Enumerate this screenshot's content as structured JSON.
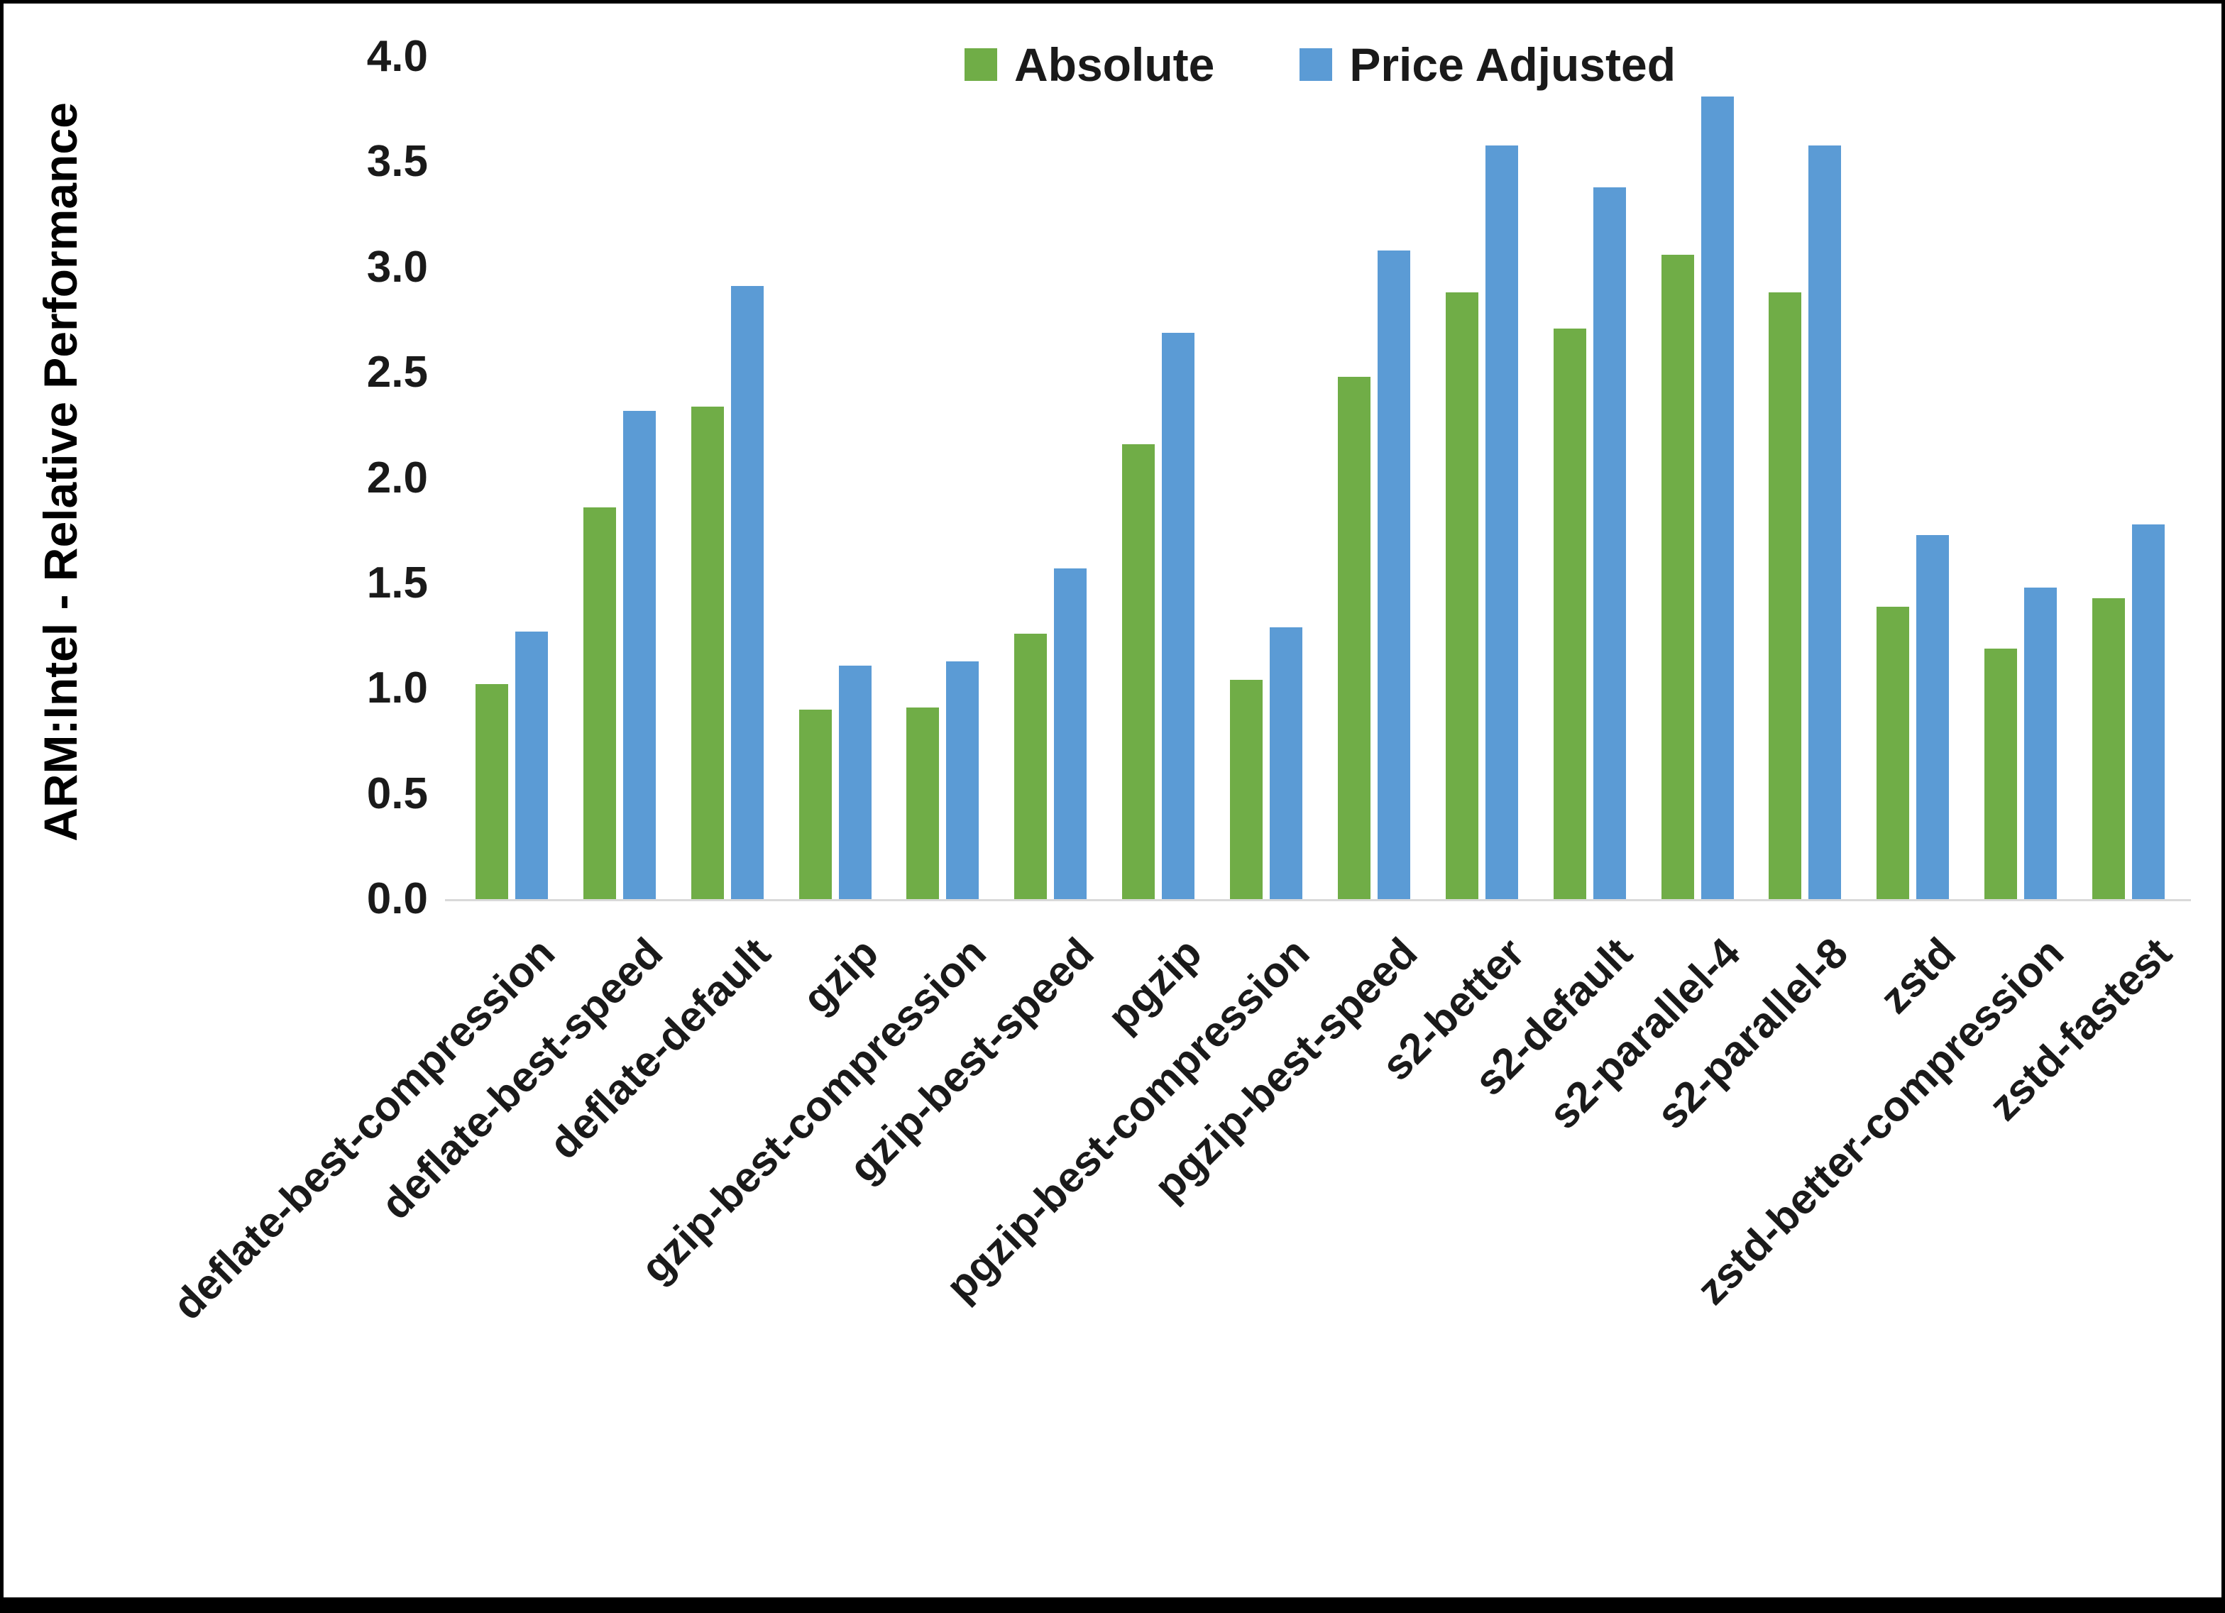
{
  "chart_data": {
    "type": "bar",
    "title": "",
    "xlabel": "",
    "ylabel": "ARM:Intel - Relative Performance",
    "ylim": [
      0,
      4.0
    ],
    "ytick_step": 0.5,
    "yticks": [
      "0.0",
      "0.5",
      "1.0",
      "1.5",
      "2.0",
      "2.5",
      "3.0",
      "3.5",
      "4.0"
    ],
    "grid": false,
    "legend_position": "top-center",
    "categories": [
      "deflate-best-compression",
      "deflate-best-speed",
      "deflate-default",
      "gzip",
      "gzip-best-compression",
      "gzip-best-speed",
      "pgzip",
      "pgzip-best-compression",
      "pgzip-best-speed",
      "s2-better",
      "s2-default",
      "s2-parallel-4",
      "s2-parallel-8",
      "zstd",
      "zstd-better-compression",
      "zstd-fastest"
    ],
    "series": [
      {
        "name": "Absolute",
        "color": "#70AD47",
        "values": [
          1.02,
          1.86,
          2.34,
          0.9,
          0.91,
          1.26,
          2.16,
          1.04,
          2.48,
          2.88,
          2.71,
          3.06,
          2.88,
          1.39,
          1.19,
          1.43
        ]
      },
      {
        "name": "Price Adjusted",
        "color": "#5B9BD5",
        "values": [
          1.27,
          2.32,
          2.91,
          1.11,
          1.13,
          1.57,
          2.69,
          1.29,
          3.08,
          3.58,
          3.38,
          3.81,
          3.58,
          1.73,
          1.48,
          1.78
        ]
      }
    ]
  }
}
